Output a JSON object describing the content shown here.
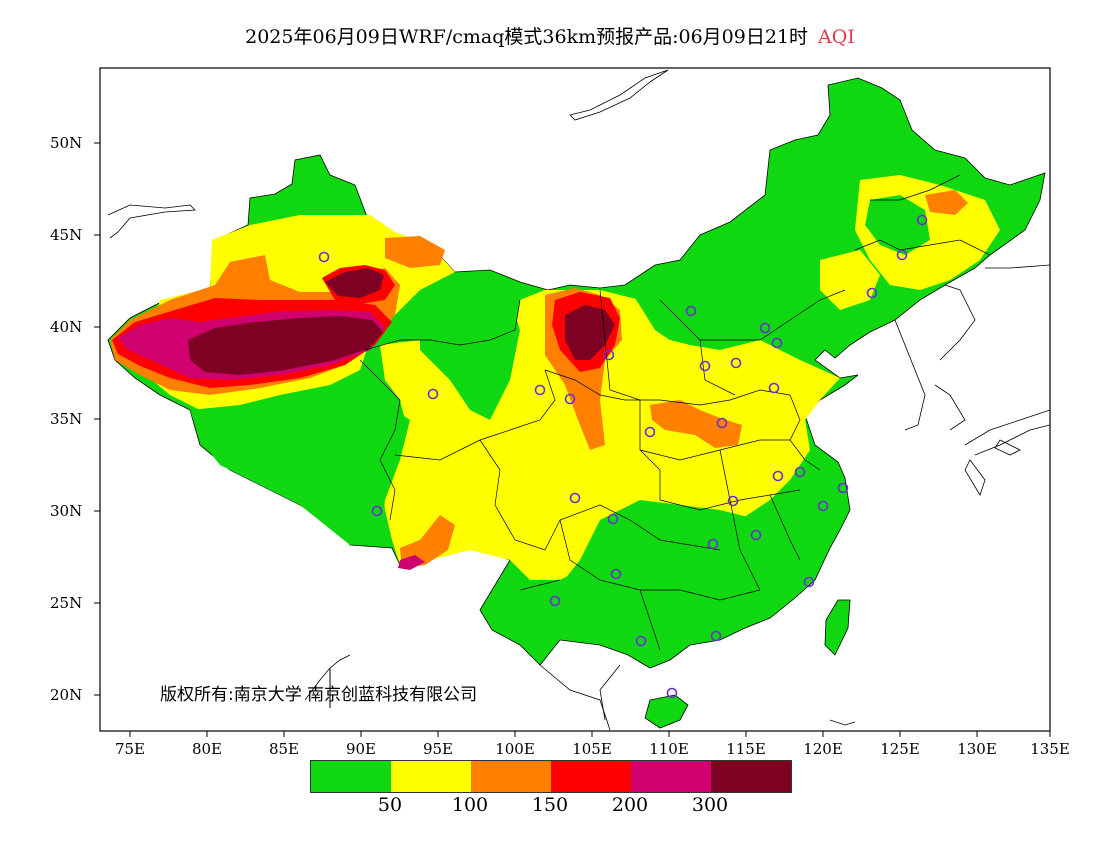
{
  "title": {
    "main": "2025年06月09日WRF/cmaq模式36km预报产品:06月09日21时",
    "variable": "AQI"
  },
  "y_axis": [
    "50N",
    "45N",
    "40N",
    "35N",
    "30N",
    "25N",
    "20N"
  ],
  "x_axis": [
    "75E",
    "80E",
    "85E",
    "90E",
    "95E",
    "100E",
    "105E",
    "110E",
    "115E",
    "120E",
    "125E",
    "130E",
    "135E"
  ],
  "copyright": "版权所有:南京大学 南京创蓝科技有限公司",
  "legend": {
    "colors": [
      "#10d810",
      "#ffff00",
      "#ff8000",
      "#ff0000",
      "#d0006f",
      "#7e0023"
    ],
    "labels": [
      "50",
      "100",
      "150",
      "200",
      "300"
    ]
  },
  "aqi_colors": {
    "good": "#10d810",
    "moderate": "#ffff00",
    "unhealthy_sensitive": "#ff8000",
    "unhealthy": "#ff0000",
    "very_unhealthy": "#d0006f",
    "hazardous": "#7e0023"
  }
}
